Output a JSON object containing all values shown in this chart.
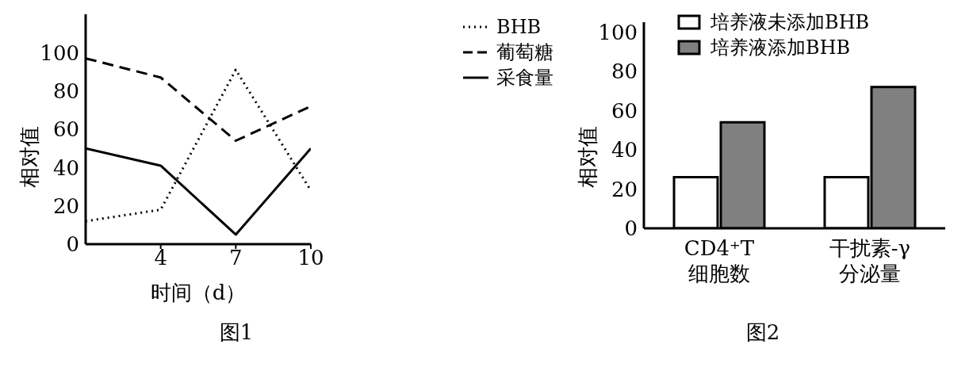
{
  "chart_data": [
    {
      "type": "line",
      "title": "图1",
      "xlabel": "时间（d）",
      "ylabel": "相对值",
      "x": [
        1,
        4,
        7,
        10
      ],
      "xlim": [
        1,
        10
      ],
      "xticks": [
        4,
        7,
        10
      ],
      "ylim": [
        0,
        120
      ],
      "yticks": [
        0,
        20,
        40,
        60,
        80,
        100
      ],
      "legend": "top right",
      "grid": false,
      "marker": "none",
      "series": [
        {
          "name": "BHB",
          "color": "#000000",
          "line_style": "dotted",
          "values": [
            12,
            18,
            91,
            28
          ]
        },
        {
          "name": "葡萄糖",
          "color": "#000000",
          "line_style": "dashed",
          "values": [
            97,
            87,
            54,
            72
          ]
        },
        {
          "name": "采食量",
          "color": "#000000",
          "line_style": "solid",
          "values": [
            50,
            41,
            5,
            50
          ]
        }
      ]
    },
    {
      "type": "bar",
      "title": "图2",
      "ylabel": "相对值",
      "categories": [
        "CD4⁺T\n细胞数",
        "干扰素-γ\n分泌量"
      ],
      "ylim": [
        0,
        105
      ],
      "yticks": [
        0,
        20,
        40,
        60,
        80,
        100
      ],
      "legend": "top left",
      "grid": false,
      "series": [
        {
          "name": "培养液未添加BHB",
          "color": "#ffffff",
          "values": [
            26,
            26
          ]
        },
        {
          "name": "培养液添加BHB",
          "color": "#808080",
          "values": [
            54,
            72
          ]
        }
      ]
    }
  ]
}
